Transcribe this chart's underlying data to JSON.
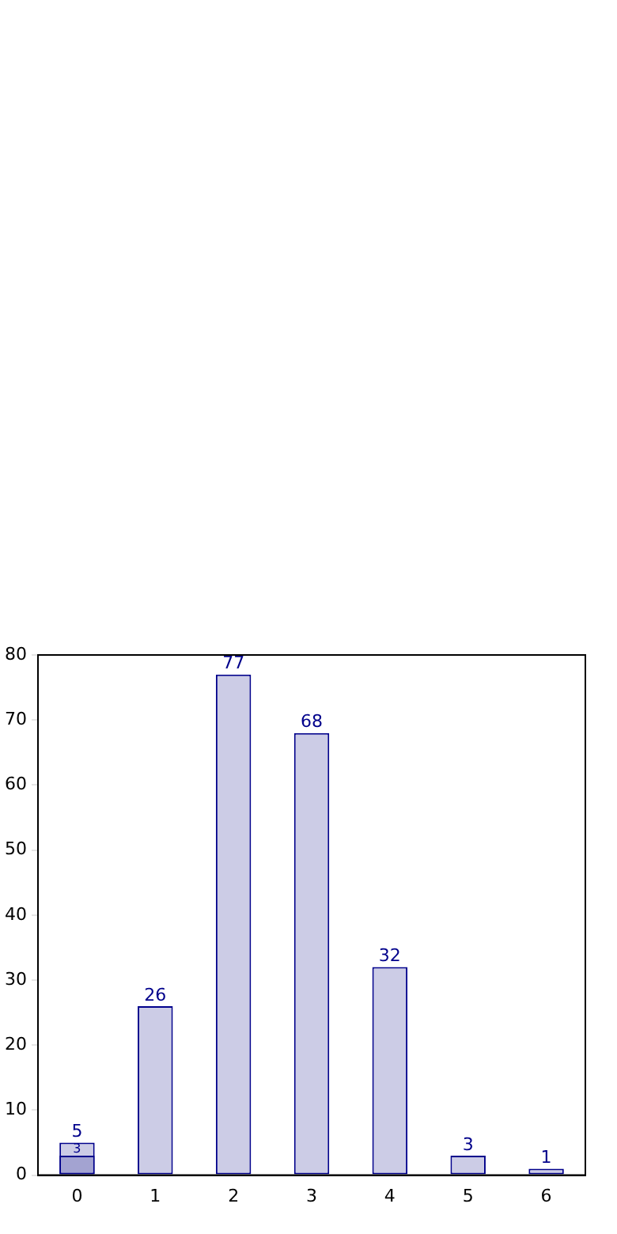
{
  "chart_data": {
    "type": "bar",
    "categories": [
      "0",
      "1",
      "2",
      "3",
      "4",
      "5",
      "6"
    ],
    "series": [
      {
        "color": "#cccce6",
        "values": [
          5,
          26,
          77,
          68,
          32,
          3,
          1
        ]
      },
      {
        "color": "#a3a3d1",
        "values": [
          3,
          null,
          null,
          null,
          null,
          null,
          null
        ]
      }
    ],
    "ylim": [
      0,
      80
    ],
    "yticks": [
      0,
      10,
      20,
      30,
      40,
      50,
      60,
      70,
      80
    ],
    "grid": false,
    "legend": false,
    "data_labels": true
  }
}
